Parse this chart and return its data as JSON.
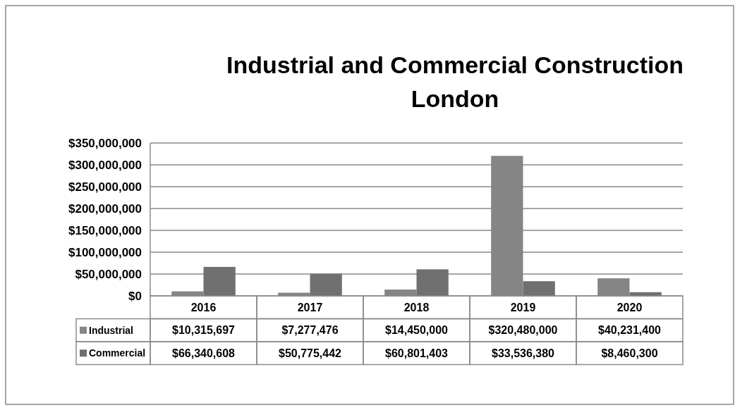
{
  "chart_data": {
    "type": "bar",
    "title": "Industrial and Commercial Construction",
    "subtitle": "London",
    "categories": [
      "2016",
      "2017",
      "2018",
      "2019",
      "2020"
    ],
    "series": [
      {
        "name": "Industrial",
        "color": "#858585",
        "values": [
          10315697,
          7277476,
          14450000,
          320480000,
          40231400
        ],
        "value_labels": [
          "$10,315,697",
          "$7,277,476",
          "$14,450,000",
          "$320,480,000",
          "$40,231,400"
        ]
      },
      {
        "name": "Commercial",
        "color": "#707070",
        "values": [
          66340608,
          50775442,
          60801403,
          33536380,
          8460300
        ],
        "value_labels": [
          "$66,340,608",
          "$50,775,442",
          "$60,801,403",
          "$33,536,380",
          "$8,460,300"
        ]
      }
    ],
    "ylim": [
      0,
      350000000
    ],
    "yticks": [
      {
        "value": 0,
        "label": "$0"
      },
      {
        "value": 50000000,
        "label": "$50,000,000"
      },
      {
        "value": 100000000,
        "label": "$100,000,000"
      },
      {
        "value": 150000000,
        "label": "$150,000,000"
      },
      {
        "value": 200000000,
        "label": "$200,000,000"
      },
      {
        "value": 250000000,
        "label": "$250,000,000"
      },
      {
        "value": 300000000,
        "label": "$300,000,000"
      },
      {
        "value": 350000000,
        "label": "$350,000,000"
      }
    ],
    "grid": "y",
    "legend": "bottom left"
  }
}
